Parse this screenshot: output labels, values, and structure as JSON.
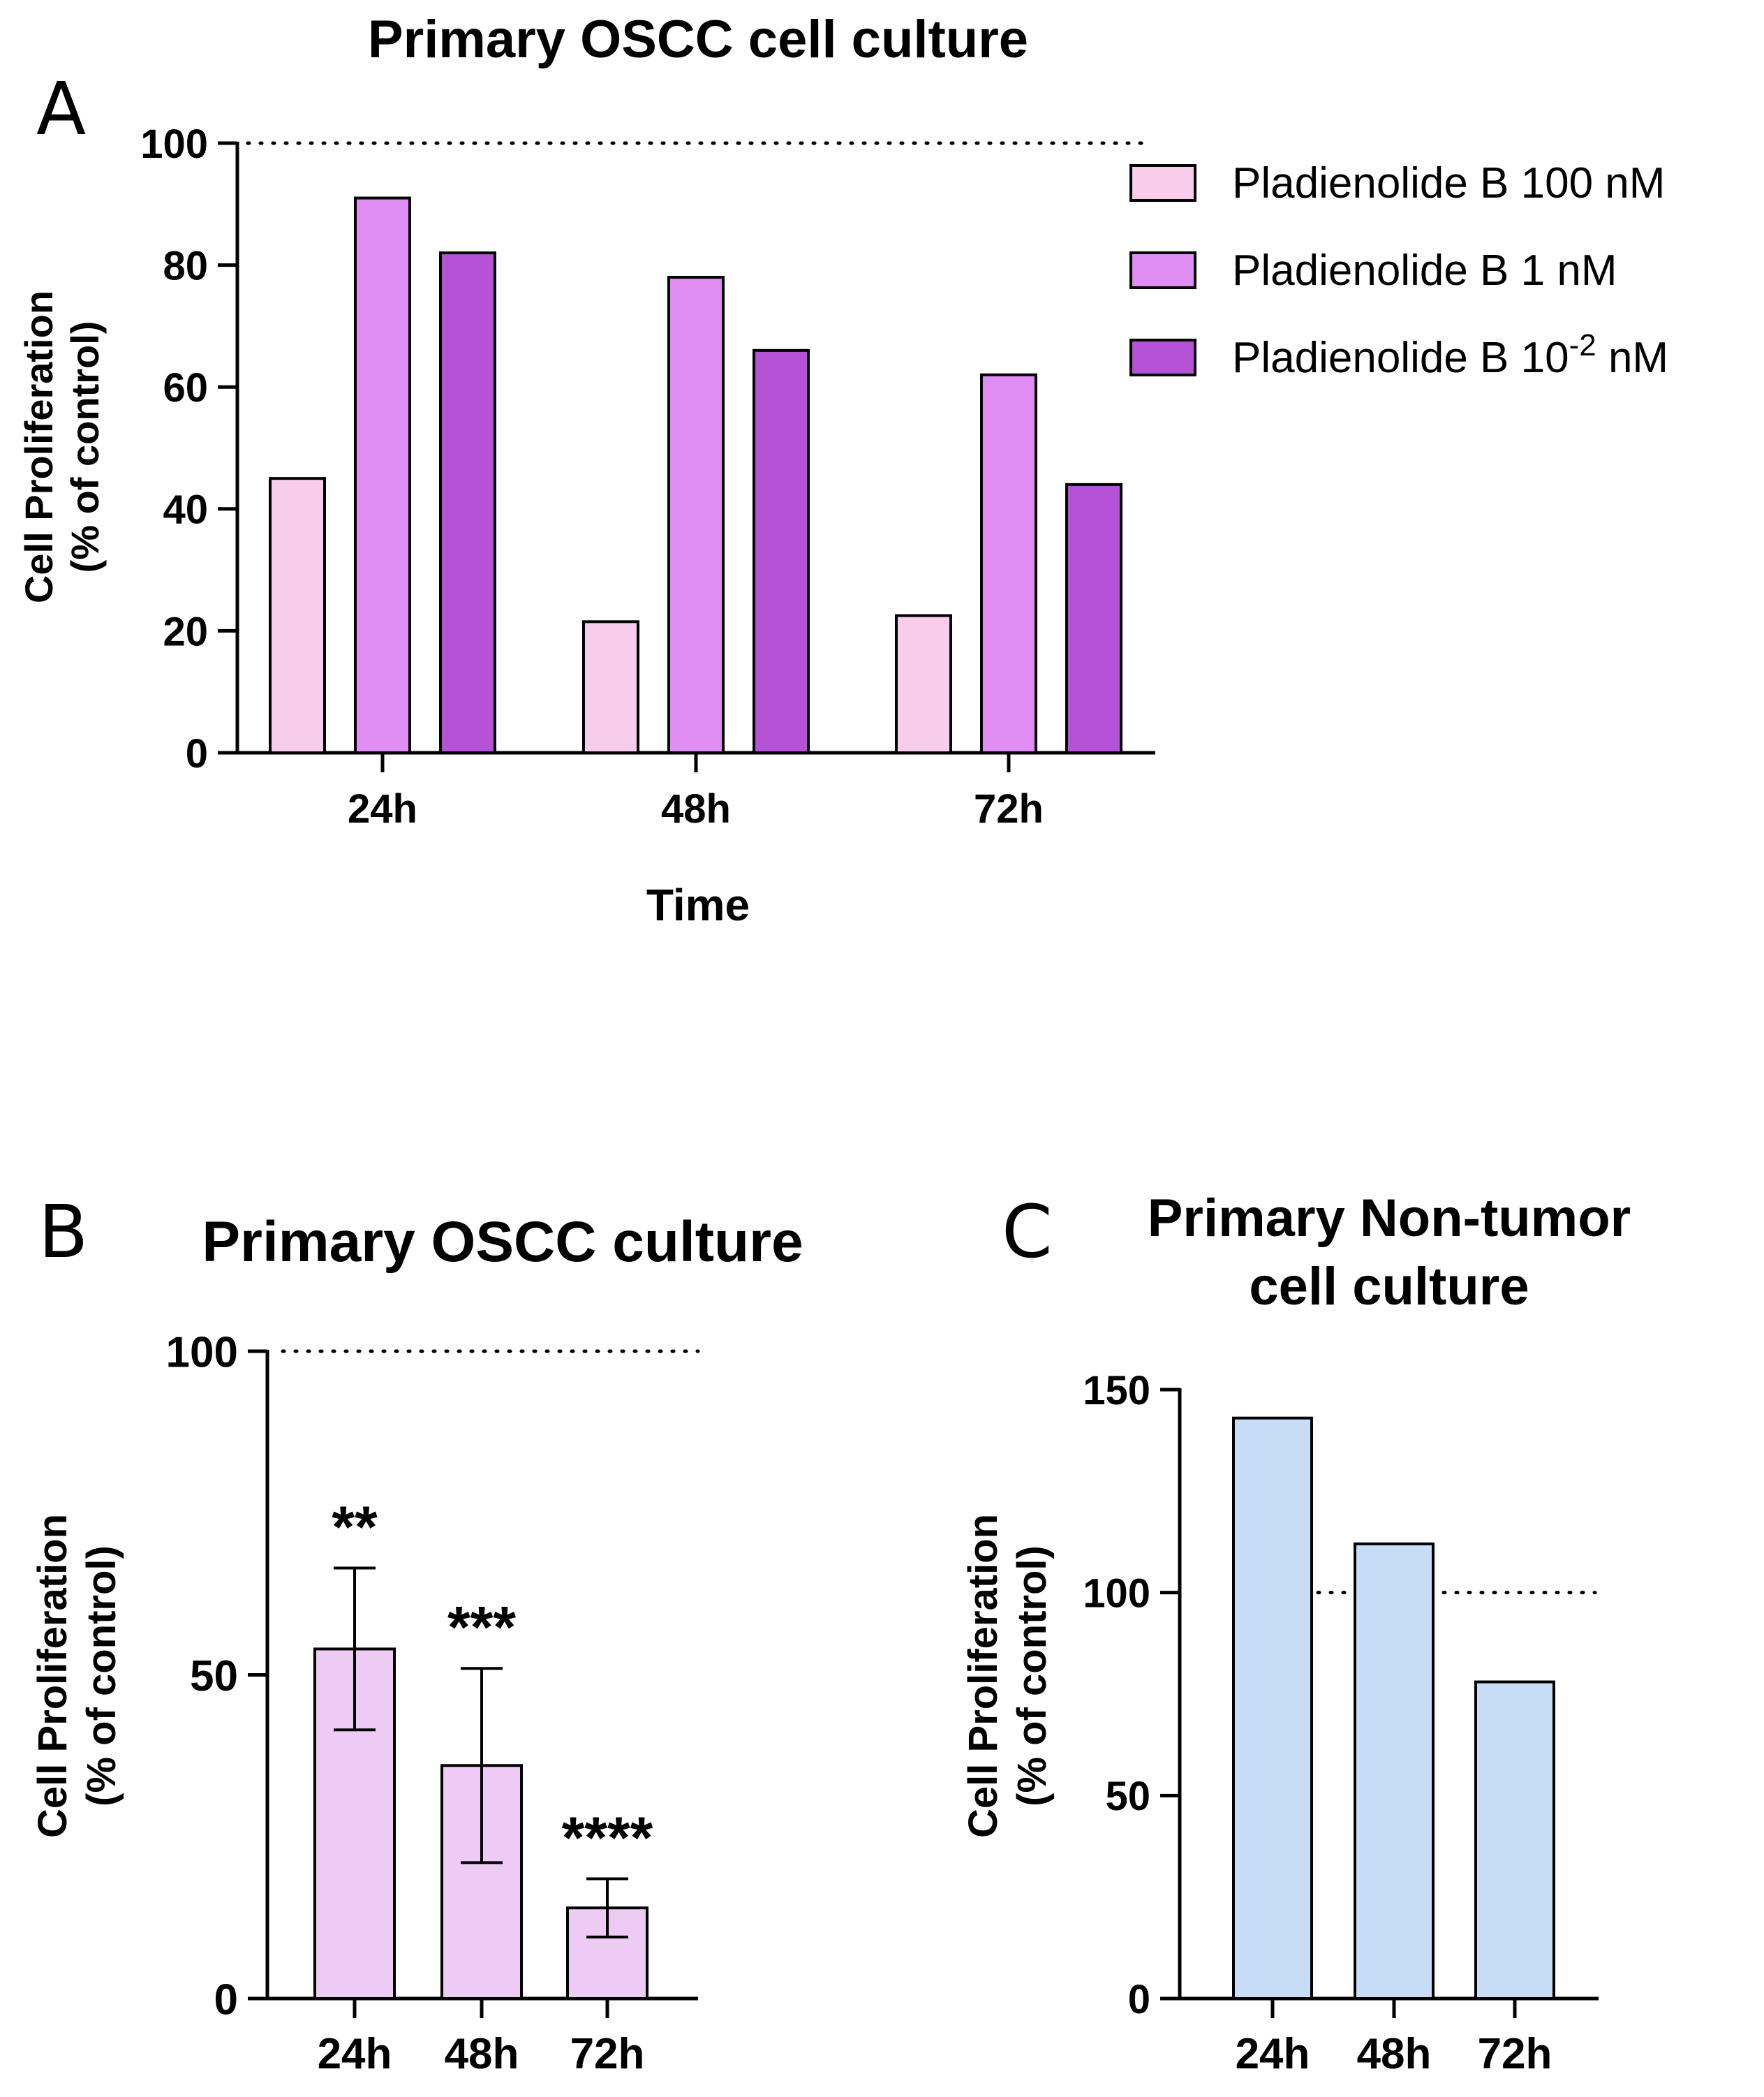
{
  "chart_data": [
    {
      "panel": "A",
      "type": "bar",
      "title": "Primary OSCC cell culture",
      "xlabel": "Time",
      "ylabel": [
        "Cell Proliferation",
        "(% of control)"
      ],
      "categories": [
        "24h",
        "48h",
        "72h"
      ],
      "series": [
        {
          "name": "Pladienolide B 100 nM",
          "values": [
            45,
            21.5,
            22.5
          ],
          "color": "#f7cdeb"
        },
        {
          "name": "Pladienolide B 1 nM",
          "values": [
            91,
            78,
            62
          ],
          "color": "#df8cf3"
        },
        {
          "name": "Pladienolide B 10",
          "sup": "-2",
          "name_suffix": " nM",
          "values": [
            82,
            66,
            44
          ],
          "color": "#b552d6"
        }
      ],
      "yticks": [
        0,
        20,
        40,
        60,
        80,
        100
      ],
      "ylim": [
        0,
        100
      ],
      "reference_line": 100,
      "legend": "top-right"
    },
    {
      "panel": "B",
      "type": "bar",
      "title": "Primary OSCC culture",
      "ylabel": [
        "Cell Proliferation",
        "(% of control)"
      ],
      "categories": [
        "24h",
        "48h",
        "72h"
      ],
      "values": [
        54,
        36,
        14
      ],
      "errors": [
        12.5,
        15,
        4.5
      ],
      "significance": [
        "**",
        "***",
        "****"
      ],
      "color": "#eecbf5",
      "yticks": [
        0,
        50,
        100
      ],
      "ylim": [
        0,
        100
      ],
      "reference_line": 100
    },
    {
      "panel": "C",
      "type": "bar",
      "title": [
        "Primary Non-tumor",
        "cell culture"
      ],
      "ylabel": [
        "Cell Proliferation",
        "(% of control)"
      ],
      "categories": [
        "24h",
        "48h",
        "72h"
      ],
      "values": [
        143,
        112,
        78
      ],
      "color": "#c6dcf7",
      "yticks": [
        0,
        50,
        100,
        150
      ],
      "ylim": [
        0,
        150
      ],
      "reference_line": 100
    }
  ]
}
